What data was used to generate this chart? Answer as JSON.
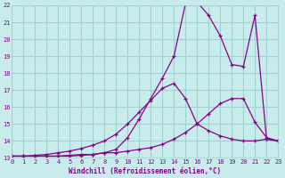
{
  "xlabel": "Windchill (Refroidissement éolien,°C)",
  "background_color": "#c8ecec",
  "grid_color": "#a0d0d0",
  "line_color": "#880088",
  "marker": "+",
  "xlim": [
    0,
    23
  ],
  "ylim": [
    13,
    22
  ],
  "xticks": [
    0,
    1,
    2,
    3,
    4,
    5,
    6,
    7,
    8,
    9,
    10,
    11,
    12,
    13,
    14,
    15,
    16,
    17,
    18,
    19,
    20,
    21,
    22,
    23
  ],
  "yticks": [
    13,
    14,
    15,
    16,
    17,
    18,
    19,
    20,
    21,
    22
  ],
  "curve1_x": [
    0,
    1,
    2,
    3,
    4,
    5,
    6,
    7,
    8,
    9,
    10,
    11,
    12,
    13,
    14,
    15,
    16,
    17,
    18,
    19,
    20,
    21,
    22,
    23
  ],
  "curve1_y": [
    13.1,
    13.1,
    13.1,
    13.1,
    13.1,
    13.15,
    13.2,
    13.2,
    13.3,
    13.3,
    13.4,
    13.5,
    13.6,
    13.8,
    14.1,
    14.5,
    15.0,
    15.6,
    16.2,
    16.5,
    16.5,
    15.1,
    14.2,
    14.0
  ],
  "curve2_x": [
    0,
    1,
    2,
    3,
    4,
    5,
    6,
    7,
    8,
    9,
    10,
    11,
    12,
    13,
    14,
    15,
    16,
    17,
    18,
    19,
    20,
    21,
    22,
    23
  ],
  "curve2_y": [
    13.1,
    13.1,
    13.15,
    13.2,
    13.3,
    13.4,
    13.55,
    13.75,
    14.0,
    14.4,
    15.0,
    15.7,
    16.4,
    17.1,
    17.4,
    16.5,
    15.0,
    14.6,
    14.3,
    14.1,
    14.0,
    14.0,
    14.1,
    14.0
  ],
  "curve3_x": [
    0,
    1,
    2,
    3,
    4,
    5,
    6,
    7,
    8,
    9,
    10,
    11,
    12,
    13,
    14,
    15,
    16,
    17,
    18,
    19,
    20,
    21,
    22,
    23
  ],
  "curve3_y": [
    13.1,
    13.1,
    13.1,
    13.1,
    13.1,
    13.1,
    13.15,
    13.2,
    13.3,
    13.5,
    14.2,
    15.3,
    16.5,
    17.7,
    19.0,
    22.1,
    22.2,
    21.4,
    20.2,
    18.5,
    18.4,
    21.4,
    14.1,
    14.0
  ]
}
